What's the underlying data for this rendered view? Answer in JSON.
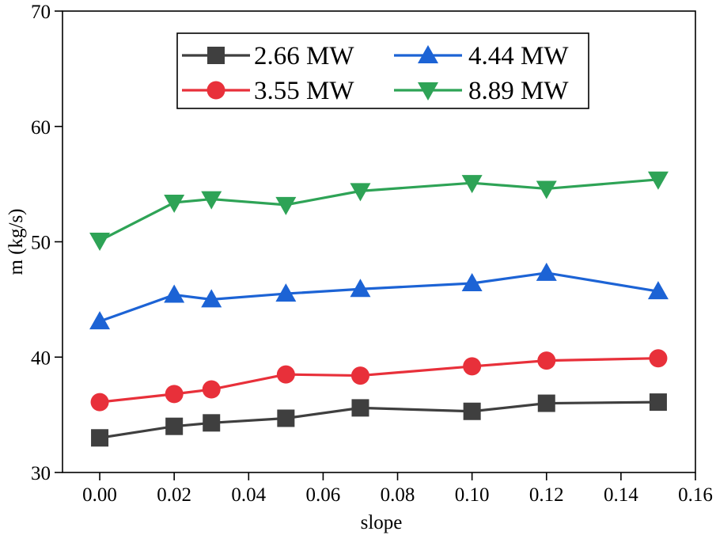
{
  "chart_data": {
    "type": "line",
    "xlabel": "slope",
    "ylabel": "m (kg/s)",
    "xlim": [
      -0.01,
      0.16
    ],
    "ylim": [
      30,
      70
    ],
    "xticks": [
      0.0,
      0.02,
      0.04,
      0.06,
      0.08,
      0.1,
      0.12,
      0.14,
      0.16
    ],
    "xtick_labels": [
      "0.00",
      "0.02",
      "0.04",
      "0.06",
      "0.08",
      "0.10",
      "0.12",
      "0.14",
      "0.16"
    ],
    "yticks": [
      30,
      40,
      50,
      60,
      70
    ],
    "ytick_labels": [
      "30",
      "40",
      "50",
      "60",
      "70"
    ],
    "grid": false,
    "legend_position": "top-center",
    "x": [
      0.0,
      0.02,
      0.03,
      0.05,
      0.07,
      0.1,
      0.12,
      0.15
    ],
    "series": [
      {
        "name": "2.66 MW",
        "color": "#3f3f3f",
        "marker": "square",
        "values": [
          33.0,
          34.0,
          34.3,
          34.7,
          35.6,
          35.3,
          36.0,
          36.1
        ]
      },
      {
        "name": "3.55 MW",
        "color": "#e8303a",
        "marker": "circle",
        "values": [
          36.1,
          36.8,
          37.2,
          38.5,
          38.4,
          39.2,
          39.7,
          39.9
        ]
      },
      {
        "name": "4.44 MW",
        "color": "#1c63d5",
        "marker": "triangle-up",
        "values": [
          43.1,
          45.4,
          45.0,
          45.5,
          45.9,
          46.4,
          47.3,
          45.7
        ]
      },
      {
        "name": "8.89 MW",
        "color": "#2ea356",
        "marker": "triangle-down",
        "values": [
          50.1,
          53.4,
          53.7,
          53.2,
          54.4,
          55.1,
          54.6,
          55.4
        ]
      }
    ]
  }
}
